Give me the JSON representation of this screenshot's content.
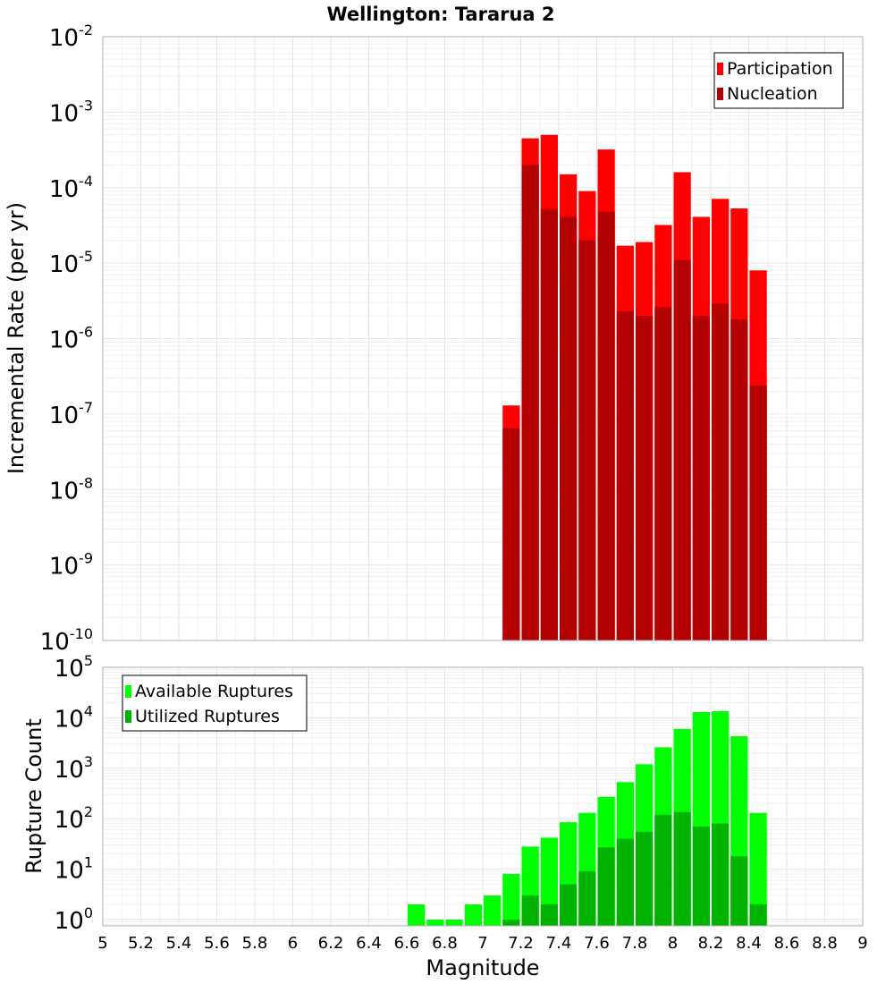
{
  "chart_data": [
    {
      "type": "bar",
      "title": "Wellington: Tararua 2",
      "ylabel": "Incremental Rate (per yr)",
      "yscale": "log",
      "ylim": [
        1e-10,
        0.01
      ],
      "y_tick_exponents": [
        "-10",
        "-9",
        "-8",
        "-7",
        "-6",
        "-5",
        "-4",
        "-3",
        "-2"
      ],
      "xlim": [
        5,
        9
      ],
      "bin_width": 0.1,
      "legend_position": "top-right",
      "grid": true,
      "series": [
        {
          "name": "Participation",
          "color": "#ff0000",
          "x": [
            7.15,
            7.25,
            7.35,
            7.45,
            7.55,
            7.65,
            7.75,
            7.85,
            7.95,
            8.05,
            8.15,
            8.25,
            8.35,
            8.45
          ],
          "values": [
            1.3e-07,
            0.00045,
            0.0005,
            0.00015,
            9e-05,
            0.00032,
            1.7e-05,
            1.9e-05,
            3.2e-05,
            0.00016,
            4.1e-05,
            7.1e-05,
            5.3e-05,
            8e-06
          ]
        },
        {
          "name": "Nucleation",
          "color": "#b30000",
          "x": [
            7.15,
            7.25,
            7.35,
            7.45,
            7.55,
            7.65,
            7.75,
            7.85,
            7.95,
            8.05,
            8.15,
            8.25,
            8.35,
            8.45
          ],
          "values": [
            6.5e-08,
            0.0002,
            5.2e-05,
            4.1e-05,
            2e-05,
            4.8e-05,
            2.3e-06,
            2e-06,
            2.6e-06,
            1.1e-05,
            2e-06,
            2.9e-06,
            1.8e-06,
            2.4e-07
          ]
        }
      ]
    },
    {
      "type": "bar",
      "xlabel": "Magnitude",
      "ylabel": "Rupture Count",
      "yscale": "log",
      "ylim": [
        0.75,
        100000
      ],
      "y_tick_exponents": [
        "0",
        "1",
        "2",
        "3",
        "4",
        "5"
      ],
      "xlim": [
        5,
        9
      ],
      "x_ticks": [
        "5",
        "5.2",
        "5.4",
        "5.6",
        "5.8",
        "6",
        "6.2",
        "6.4",
        "6.6",
        "6.8",
        "7",
        "7.2",
        "7.4",
        "7.6",
        "7.8",
        "8",
        "8.2",
        "8.4",
        "8.6",
        "8.8",
        "9"
      ],
      "bin_width": 0.1,
      "legend_position": "top-left",
      "grid": true,
      "series": [
        {
          "name": "Available Ruptures",
          "color": "#00ff00",
          "x": [
            6.65,
            6.75,
            6.85,
            6.95,
            7.05,
            7.15,
            7.25,
            7.35,
            7.45,
            7.55,
            7.65,
            7.75,
            7.85,
            7.95,
            8.05,
            8.15,
            8.25,
            8.35,
            8.45
          ],
          "values": [
            2,
            1,
            1,
            2,
            3,
            8,
            28,
            42,
            85,
            130,
            270,
            530,
            1200,
            2600,
            6000,
            13000,
            13500,
            4300,
            130
          ]
        },
        {
          "name": "Utilized Ruptures",
          "color": "#00b300",
          "x": [
            7.15,
            7.25,
            7.35,
            7.45,
            7.55,
            7.65,
            7.75,
            7.85,
            7.95,
            8.05,
            8.15,
            8.25,
            8.35,
            8.45
          ],
          "values": [
            1,
            3,
            2,
            5,
            9,
            27,
            40,
            55,
            120,
            135,
            70,
            80,
            18,
            2
          ]
        }
      ]
    }
  ]
}
